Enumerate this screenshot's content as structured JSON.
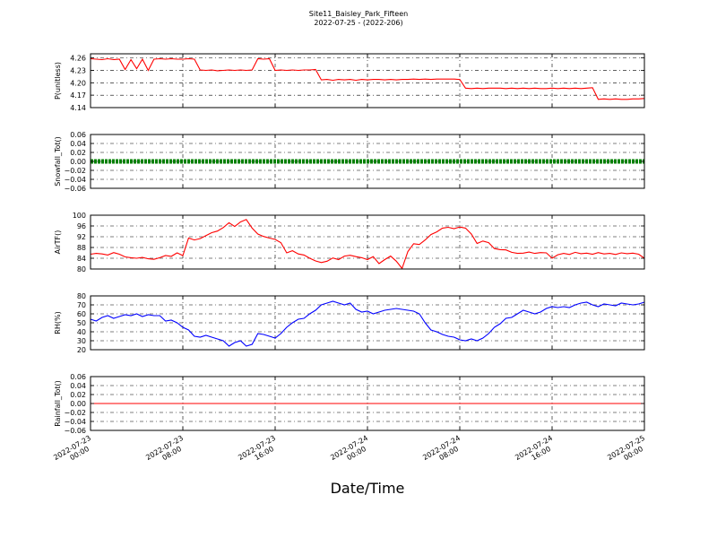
{
  "figure": {
    "title": "Site11_Baisley_Park_Fifteen",
    "subtitle": "2022-07-25 - (2022-206)",
    "xlabel": "Date/Time"
  },
  "chart_data": [
    {
      "type": "line",
      "ylabel": "P(unitless)",
      "ylim": [
        4.14,
        4.27
      ],
      "yticks": [
        "4.26",
        "4.23",
        "4.20",
        "4.17",
        "4.14"
      ],
      "ytick_values": [
        4.26,
        4.23,
        4.2,
        4.17,
        4.14
      ],
      "color": "#ff0000",
      "grid": true,
      "x": [
        0,
        0.5,
        1,
        1.5,
        2,
        2.5,
        3,
        3.5,
        4,
        4.5,
        5,
        5.5,
        6,
        6.5,
        7,
        7.5,
        8,
        8.5,
        9,
        9.5,
        10,
        10.5,
        11,
        11.5,
        12,
        12.5,
        13,
        13.5,
        14,
        14.5,
        15,
        15.5,
        16,
        16.5,
        17,
        17.5,
        18,
        18.5,
        19,
        19.5,
        20,
        20.5,
        21,
        21.5,
        22,
        22.5,
        23,
        23.5,
        24,
        24.5,
        25,
        25.5,
        26,
        26.5,
        27,
        27.5,
        28,
        28.5,
        29,
        29.5,
        30,
        30.5,
        31,
        31.5,
        32,
        32.5,
        33,
        33.5,
        34,
        34.5,
        35,
        35.5,
        36,
        36.5,
        37,
        37.5,
        38,
        38.5,
        39,
        39.5,
        40,
        40.5,
        41,
        41.5,
        42,
        42.5,
        43,
        43.5,
        44,
        44.5,
        45,
        45.5,
        46,
        46.5,
        47,
        47.5,
        48
      ],
      "values": [
        4.258,
        4.257,
        4.256,
        4.258,
        4.256,
        4.257,
        4.232,
        4.256,
        4.234,
        4.257,
        4.23,
        4.257,
        4.258,
        4.257,
        4.258,
        4.257,
        4.257,
        4.258,
        4.257,
        4.231,
        4.23,
        4.231,
        4.229,
        4.23,
        4.231,
        4.23,
        4.231,
        4.23,
        4.231,
        4.258,
        4.257,
        4.258,
        4.23,
        4.231,
        4.23,
        4.231,
        4.23,
        4.231,
        4.231,
        4.232,
        4.207,
        4.208,
        4.206,
        4.208,
        4.207,
        4.208,
        4.206,
        4.208,
        4.207,
        4.208,
        4.208,
        4.207,
        4.208,
        4.207,
        4.208,
        4.208,
        4.209,
        4.208,
        4.209,
        4.208,
        4.209,
        4.209,
        4.209,
        4.209,
        4.208,
        4.187,
        4.186,
        4.187,
        4.186,
        4.187,
        4.187,
        4.187,
        4.186,
        4.187,
        4.186,
        4.187,
        4.186,
        4.187,
        4.186,
        4.186,
        4.187,
        4.186,
        4.187,
        4.186,
        4.187,
        4.186,
        4.187,
        4.188,
        4.16,
        4.161,
        4.16,
        4.161,
        4.16,
        4.16,
        4.161,
        4.161,
        4.162
      ]
    },
    {
      "type": "scatter",
      "ylabel": "Snowfall_Tot()",
      "ylim": [
        -0.06,
        0.06
      ],
      "yticks": [
        "0.06",
        "0.04",
        "0.02",
        "0.00",
        "−0.02",
        "−0.04",
        "−0.06"
      ],
      "ytick_values": [
        0.06,
        0.04,
        0.02,
        0.0,
        -0.02,
        -0.04,
        -0.06
      ],
      "color": "#008000",
      "grid": true,
      "x_range": [
        0,
        48
      ],
      "value": 0.0
    },
    {
      "type": "line",
      "ylabel": "AirTF()",
      "ylim": [
        80,
        100
      ],
      "yticks": [
        "100",
        "96",
        "92",
        "88",
        "84",
        "80"
      ],
      "ytick_values": [
        100,
        96,
        92,
        88,
        84,
        80
      ],
      "color": "#ff0000",
      "grid": true,
      "x": [
        0,
        0.5,
        1,
        1.5,
        2,
        2.5,
        3,
        3.5,
        4,
        4.5,
        5,
        5.5,
        6,
        6.5,
        7,
        7.5,
        8,
        8.5,
        9,
        9.5,
        10,
        10.5,
        11,
        11.5,
        12,
        12.5,
        13,
        13.5,
        14,
        14.5,
        15,
        15.5,
        16,
        16.5,
        17,
        17.5,
        18,
        18.5,
        19,
        19.5,
        20,
        20.5,
        21,
        21.5,
        22,
        22.5,
        23,
        23.5,
        24,
        24.5,
        25,
        25.5,
        26,
        26.5,
        27,
        27.5,
        28,
        28.5,
        29,
        29.5,
        30,
        30.5,
        31,
        31.5,
        32,
        32.5,
        33,
        33.5,
        34,
        34.5,
        35,
        35.5,
        36,
        36.5,
        37,
        37.5,
        38,
        38.5,
        39,
        39.5,
        40,
        40.5,
        41,
        41.5,
        42,
        42.5,
        43,
        43.5,
        44,
        44.5,
        45,
        45.5,
        46,
        46.5,
        47,
        47.5,
        48
      ],
      "values": [
        85.5,
        85.8,
        85.6,
        85.2,
        86.1,
        85.5,
        84.5,
        84.2,
        84.0,
        84.3,
        83.8,
        83.6,
        84.2,
        85.0,
        84.7,
        86.0,
        85.0,
        91.5,
        90.8,
        91.3,
        92.4,
        93.5,
        94.1,
        95.4,
        97.2,
        95.8,
        97.5,
        98.4,
        95.2,
        93.0,
        92.1,
        91.5,
        91.0,
        89.8,
        86.0,
        86.8,
        85.6,
        85.2,
        84.0,
        83.0,
        82.4,
        82.9,
        84.1,
        83.5,
        84.8,
        85.1,
        84.6,
        84.2,
        83.5,
        84.6,
        82.0,
        83.5,
        84.8,
        82.9,
        80.2,
        86.5,
        89.4,
        89.1,
        90.8,
        92.8,
        93.8,
        95.2,
        95.5,
        95.0,
        95.6,
        95.2,
        93.0,
        89.5,
        90.4,
        89.8,
        87.6,
        87.2,
        87.1,
        86.2,
        85.8,
        85.9,
        86.3,
        85.8,
        86.1,
        86.0,
        84.0,
        85.3,
        85.8,
        85.4,
        86.2,
        85.7,
        85.9,
        85.5,
        86.1,
        85.6,
        85.8,
        85.4,
        86.0,
        85.7,
        85.9,
        85.5,
        84.0
      ]
    },
    {
      "type": "line",
      "ylabel": "RH(%)",
      "ylim": [
        20,
        80
      ],
      "yticks": [
        "80",
        "70",
        "60",
        "50",
        "40",
        "30",
        "20"
      ],
      "ytick_values": [
        80,
        70,
        60,
        50,
        40,
        30,
        20
      ],
      "color": "#0000ff",
      "grid": true,
      "x": [
        0,
        0.5,
        1,
        1.5,
        2,
        2.5,
        3,
        3.5,
        4,
        4.5,
        5,
        5.5,
        6,
        6.5,
        7,
        7.5,
        8,
        8.5,
        9,
        9.5,
        10,
        10.5,
        11,
        11.5,
        12,
        12.5,
        13,
        13.5,
        14,
        14.5,
        15,
        15.5,
        16,
        16.5,
        17,
        17.5,
        18,
        18.5,
        19,
        19.5,
        20,
        20.5,
        21,
        21.5,
        22,
        22.5,
        23,
        23.5,
        24,
        24.5,
        25,
        25.5,
        26,
        26.5,
        27,
        27.5,
        28,
        28.5,
        29,
        29.5,
        30,
        30.5,
        31,
        31.5,
        32,
        32.5,
        33,
        33.5,
        34,
        34.5,
        35,
        35.5,
        36,
        36.5,
        37,
        37.5,
        38,
        38.5,
        39,
        39.5,
        40,
        40.5,
        41,
        41.5,
        42,
        42.5,
        43,
        43.5,
        44,
        44.5,
        45,
        45.5,
        46,
        46.5,
        47,
        47.5,
        48
      ],
      "values": [
        54,
        52,
        56,
        58,
        55,
        57,
        59,
        58,
        60,
        57,
        59,
        58,
        58,
        52,
        53,
        50,
        45,
        42,
        35,
        34,
        36,
        34,
        32,
        30,
        24,
        28,
        30,
        24,
        26,
        38,
        37,
        35,
        33,
        38,
        45,
        50,
        54,
        55,
        60,
        64,
        70,
        72,
        74,
        72,
        70,
        72,
        65,
        62,
        63,
        60,
        62,
        64,
        65,
        66,
        65,
        64,
        63,
        60,
        50,
        42,
        40,
        37,
        35,
        34,
        31,
        30,
        32,
        30,
        33,
        38,
        45,
        49,
        55,
        56,
        60,
        64,
        62,
        60,
        62,
        66,
        68,
        67,
        68,
        67,
        70,
        72,
        73,
        70,
        68,
        71,
        70,
        69,
        72,
        71,
        70,
        71,
        73
      ]
    },
    {
      "type": "line",
      "ylabel": "Rainfall_Tot()",
      "ylim": [
        -0.06,
        0.06
      ],
      "yticks": [
        "0.06",
        "0.04",
        "0.02",
        "0.00",
        "−0.02",
        "−0.04",
        "−0.06"
      ],
      "ytick_values": [
        0.06,
        0.04,
        0.02,
        0.0,
        -0.02,
        -0.04,
        -0.06
      ],
      "color": "#ff0000",
      "grid": true,
      "x_range": [
        0,
        48
      ],
      "value": 0.0
    }
  ],
  "xaxis": {
    "range": [
      0,
      48
    ],
    "ticks": [
      {
        "value": 0,
        "label_date": "2022-07-23",
        "label_time": "00:00"
      },
      {
        "value": 8,
        "label_date": "2022-07-23",
        "label_time": "08:00"
      },
      {
        "value": 16,
        "label_date": "2022-07-23",
        "label_time": "16:00"
      },
      {
        "value": 24,
        "label_date": "2022-07-24",
        "label_time": "00:00"
      },
      {
        "value": 32,
        "label_date": "2022-07-24",
        "label_time": "08:00"
      },
      {
        "value": 40,
        "label_date": "2022-07-24",
        "label_time": "16:00"
      },
      {
        "value": 48,
        "label_date": "2022-07-25",
        "label_time": "00:00"
      }
    ]
  }
}
